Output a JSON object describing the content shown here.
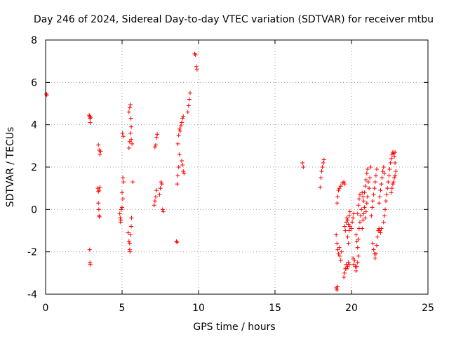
{
  "chart_data": {
    "type": "scatter",
    "title": "Day 246 of 2024, Sidereal Day-to-day VTEC variation (SDTVAR) for receiver mtbu",
    "xlabel": "GPS time / hours",
    "ylabel": "SDTVAR / TECUs",
    "xlim": [
      0,
      25
    ],
    "ylim": [
      -4,
      8
    ],
    "xticks": [
      0,
      5,
      10,
      15,
      20,
      25
    ],
    "yticks": [
      -4,
      -2,
      0,
      2,
      4,
      6,
      8
    ],
    "grid": true,
    "marker": "+",
    "color": "#ff0000",
    "series": [
      {
        "name": "SDTVAR",
        "points": [
          [
            0.05,
            5.45
          ],
          [
            0.08,
            5.4
          ],
          [
            2.85,
            4.45
          ],
          [
            2.88,
            4.4
          ],
          [
            2.9,
            4.3
          ],
          [
            2.92,
            4.1
          ],
          [
            2.95,
            4.35
          ],
          [
            2.88,
            -1.9
          ],
          [
            2.9,
            -2.5
          ],
          [
            2.92,
            -2.6
          ],
          [
            3.45,
            3.05
          ],
          [
            3.5,
            2.8
          ],
          [
            3.55,
            2.6
          ],
          [
            3.6,
            2.75
          ],
          [
            3.42,
            1.0
          ],
          [
            3.45,
            0.85
          ],
          [
            3.5,
            0.9
          ],
          [
            3.55,
            1.05
          ],
          [
            3.45,
            0.3
          ],
          [
            3.48,
            0.0
          ],
          [
            3.5,
            -0.3
          ],
          [
            3.52,
            -0.35
          ],
          [
            4.85,
            -0.2
          ],
          [
            4.88,
            -0.4
          ],
          [
            4.9,
            -0.6
          ],
          [
            4.92,
            -0.5
          ],
          [
            4.95,
            0.0
          ],
          [
            5.0,
            0.1
          ],
          [
            5.05,
            0.5
          ],
          [
            5.0,
            0.8
          ],
          [
            5.05,
            1.5
          ],
          [
            5.1,
            1.3
          ],
          [
            5.02,
            3.6
          ],
          [
            5.08,
            3.45
          ],
          [
            5.4,
            -1.1
          ],
          [
            5.45,
            -1.5
          ],
          [
            5.5,
            -1.9
          ],
          [
            5.52,
            -2.0
          ],
          [
            5.5,
            -1.6
          ],
          [
            5.55,
            -1.2
          ],
          [
            5.6,
            -0.8
          ],
          [
            5.62,
            -0.4
          ],
          [
            5.45,
            2.9
          ],
          [
            5.5,
            3.2
          ],
          [
            5.55,
            3.6
          ],
          [
            5.6,
            3.3
          ],
          [
            5.45,
            4.6
          ],
          [
            5.5,
            4.8
          ],
          [
            5.55,
            4.95
          ],
          [
            5.58,
            4.3
          ],
          [
            5.6,
            3.9
          ],
          [
            5.65,
            3.1
          ],
          [
            5.7,
            1.3
          ],
          [
            7.1,
            0.2
          ],
          [
            7.15,
            0.4
          ],
          [
            7.2,
            0.6
          ],
          [
            7.25,
            0.9
          ],
          [
            7.15,
            2.95
          ],
          [
            7.2,
            3.05
          ],
          [
            7.25,
            3.4
          ],
          [
            7.3,
            3.55
          ],
          [
            7.45,
            0.7
          ],
          [
            7.5,
            1.0
          ],
          [
            7.55,
            1.3
          ],
          [
            7.6,
            1.2
          ],
          [
            7.65,
            0.0
          ],
          [
            7.7,
            -0.1
          ],
          [
            8.55,
            -1.5
          ],
          [
            8.6,
            -1.55
          ],
          [
            8.6,
            1.2
          ],
          [
            8.65,
            1.6
          ],
          [
            8.7,
            2.0
          ],
          [
            8.75,
            2.6
          ],
          [
            8.65,
            3.1
          ],
          [
            8.7,
            3.5
          ],
          [
            8.75,
            3.8
          ],
          [
            8.8,
            3.7
          ],
          [
            8.85,
            3.95
          ],
          [
            8.9,
            4.1
          ],
          [
            8.95,
            4.3
          ],
          [
            9.0,
            4.4
          ],
          [
            8.9,
            2.3
          ],
          [
            8.95,
            2.1
          ],
          [
            9.0,
            1.8
          ],
          [
            9.05,
            1.7
          ],
          [
            9.3,
            4.6
          ],
          [
            9.35,
            4.9
          ],
          [
            9.4,
            5.2
          ],
          [
            9.45,
            5.5
          ],
          [
            9.75,
            7.35
          ],
          [
            9.8,
            7.3
          ],
          [
            9.85,
            6.75
          ],
          [
            9.9,
            6.6
          ],
          [
            16.8,
            2.2
          ],
          [
            16.85,
            2.0
          ],
          [
            17.95,
            1.05
          ],
          [
            18.0,
            1.5
          ],
          [
            18.05,
            1.8
          ],
          [
            18.1,
            2.0
          ],
          [
            18.15,
            2.2
          ],
          [
            18.2,
            2.35
          ],
          [
            19.0,
            -3.7
          ],
          [
            19.05,
            -3.8
          ],
          [
            19.1,
            -3.65
          ],
          [
            19.0,
            -1.2
          ],
          [
            19.05,
            -1.6
          ],
          [
            19.1,
            -1.9
          ],
          [
            19.15,
            -2.1
          ],
          [
            19.2,
            -1.8
          ],
          [
            19.25,
            -2.2
          ],
          [
            19.3,
            -2.4
          ],
          [
            19.35,
            -2.0
          ],
          [
            19.05,
            0.3
          ],
          [
            19.1,
            0.6
          ],
          [
            19.15,
            0.9
          ],
          [
            19.2,
            1.0
          ],
          [
            19.3,
            1.1
          ],
          [
            19.4,
            1.25
          ],
          [
            19.5,
            1.3
          ],
          [
            19.55,
            1.2
          ],
          [
            19.5,
            -3.2
          ],
          [
            19.55,
            -3.0
          ],
          [
            19.6,
            -2.8
          ],
          [
            19.65,
            -2.6
          ],
          [
            19.7,
            -2.8
          ],
          [
            19.75,
            -2.7
          ],
          [
            19.8,
            -2.5
          ],
          [
            19.85,
            -2.6
          ],
          [
            19.55,
            -0.8
          ],
          [
            19.6,
            -1.0
          ],
          [
            19.65,
            -0.6
          ],
          [
            19.7,
            -0.4
          ],
          [
            19.75,
            -0.5
          ],
          [
            19.8,
            -0.7
          ],
          [
            19.85,
            -0.3
          ],
          [
            19.9,
            -0.1
          ],
          [
            19.75,
            -1.3
          ],
          [
            19.8,
            -1.6
          ],
          [
            19.85,
            -1.0
          ],
          [
            19.9,
            -0.8
          ],
          [
            20.0,
            -0.9
          ],
          [
            20.05,
            -0.6
          ],
          [
            20.1,
            -0.4
          ],
          [
            20.15,
            -0.2
          ],
          [
            20.1,
            -2.3
          ],
          [
            20.15,
            -2.6
          ],
          [
            20.2,
            -2.4
          ],
          [
            20.25,
            -2.7
          ],
          [
            20.3,
            -2.9
          ],
          [
            20.35,
            -2.7
          ],
          [
            20.4,
            -2.5
          ],
          [
            20.45,
            -2.2
          ],
          [
            20.3,
            -1.2
          ],
          [
            20.35,
            -1.5
          ],
          [
            20.4,
            -1.8
          ],
          [
            20.45,
            -1.4
          ],
          [
            20.5,
            -0.9
          ],
          [
            20.55,
            -0.6
          ],
          [
            20.6,
            -0.3
          ],
          [
            20.65,
            0.0
          ],
          [
            20.4,
            -0.2
          ],
          [
            20.45,
            0.2
          ],
          [
            20.5,
            0.5
          ],
          [
            20.55,
            0.7
          ],
          [
            20.7,
            0.8
          ],
          [
            20.75,
            0.6
          ],
          [
            20.8,
            0.4
          ],
          [
            20.85,
            0.8
          ],
          [
            20.7,
            -0.9
          ],
          [
            20.75,
            -0.5
          ],
          [
            20.8,
            -0.2
          ],
          [
            20.85,
            0.1
          ],
          [
            20.9,
            1.1
          ],
          [
            20.95,
            1.4
          ],
          [
            21.0,
            1.7
          ],
          [
            21.05,
            1.9
          ],
          [
            20.9,
            -0.4
          ],
          [
            20.95,
            -0.1
          ],
          [
            21.0,
            0.3
          ],
          [
            21.05,
            0.6
          ],
          [
            21.1,
            1.3
          ],
          [
            21.15,
            1.0
          ],
          [
            21.2,
            1.5
          ],
          [
            21.25,
            2.0
          ],
          [
            21.3,
            -0.3
          ],
          [
            21.35,
            0.1
          ],
          [
            21.4,
            0.4
          ],
          [
            21.45,
            0.7
          ],
          [
            21.5,
            1.0
          ],
          [
            21.55,
            1.3
          ],
          [
            21.6,
            1.6
          ],
          [
            21.65,
            1.9
          ],
          [
            21.4,
            -1.6
          ],
          [
            21.45,
            -1.9
          ],
          [
            21.5,
            -2.1
          ],
          [
            21.55,
            -2.3
          ],
          [
            21.6,
            -2.1
          ],
          [
            21.65,
            -1.7
          ],
          [
            21.7,
            -1.3
          ],
          [
            21.75,
            -1.0
          ],
          [
            21.8,
            -0.9
          ],
          [
            21.85,
            -1.0
          ],
          [
            21.9,
            -1.1
          ],
          [
            21.95,
            -0.9
          ],
          [
            21.8,
            0.3
          ],
          [
            21.85,
            0.6
          ],
          [
            21.9,
            0.9
          ],
          [
            21.95,
            1.2
          ],
          [
            22.0,
            1.5
          ],
          [
            22.05,
            1.8
          ],
          [
            22.1,
            2.0
          ],
          [
            22.15,
            1.7
          ],
          [
            22.1,
            -0.6
          ],
          [
            22.15,
            -0.3
          ],
          [
            22.2,
            0.0
          ],
          [
            22.25,
            0.4
          ],
          [
            22.3,
            0.7
          ],
          [
            22.35,
            1.0
          ],
          [
            22.4,
            1.3
          ],
          [
            22.45,
            1.6
          ],
          [
            22.5,
            1.9
          ],
          [
            22.55,
            2.2
          ],
          [
            22.6,
            2.4
          ],
          [
            22.65,
            2.6
          ],
          [
            22.7,
            2.7
          ],
          [
            22.75,
            2.65
          ],
          [
            22.8,
            2.5
          ],
          [
            22.85,
            2.2
          ],
          [
            22.6,
            0.8
          ],
          [
            22.65,
            1.0
          ],
          [
            22.7,
            1.2
          ],
          [
            22.75,
            1.3
          ],
          [
            22.8,
            1.5
          ],
          [
            22.85,
            1.6
          ],
          [
            22.9,
            1.8
          ],
          [
            22.85,
            2.7
          ]
        ]
      }
    ]
  }
}
